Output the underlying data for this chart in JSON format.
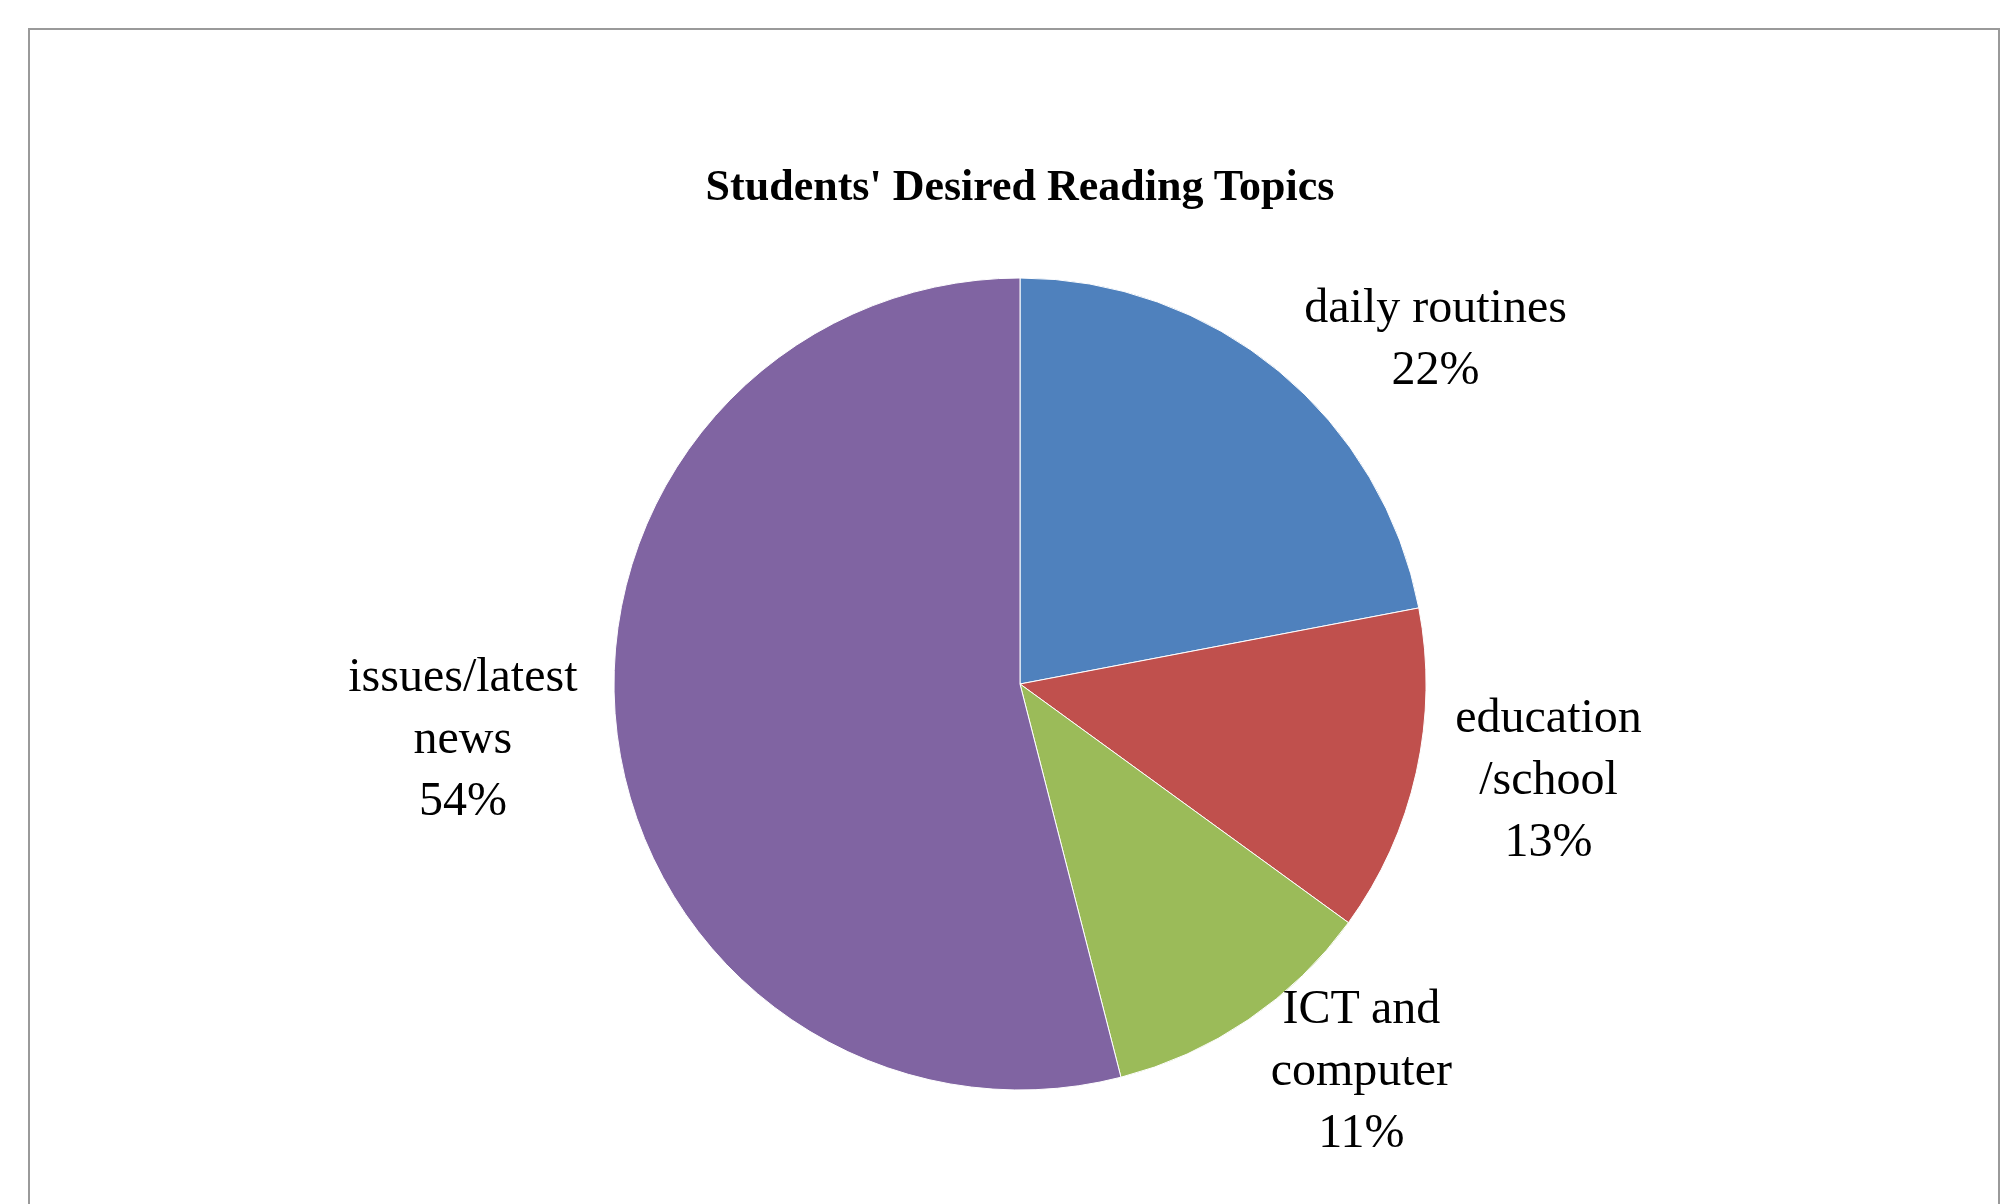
{
  "chart_data": {
    "type": "pie",
    "title": "Students' Desired Reading Topics",
    "categories": [
      "daily routines",
      "education/school",
      "ICT and computer",
      "issues/latest news"
    ],
    "values": [
      22,
      13,
      11,
      54
    ],
    "colors": [
      "#4f81bd",
      "#c0504d",
      "#9bbb59",
      "#8064a2"
    ],
    "value_labels": [
      "22%",
      "13%",
      "11%",
      "54%"
    ],
    "legend": false
  }
}
